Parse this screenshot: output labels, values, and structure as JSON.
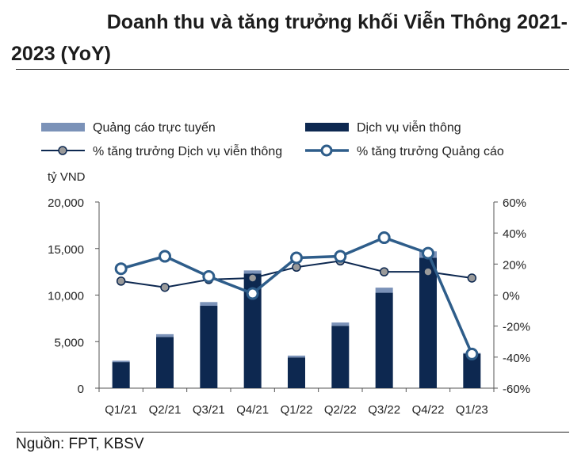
{
  "title_line1": "Doanh thu và tăng trưởng khối Viễn Thông 2021-",
  "title_line2": "2023 (YoY)",
  "source": "Nguồn: FPT, KBSV",
  "chart_data": {
    "type": "bar",
    "stacked": true,
    "categories": [
      "Q1/21",
      "Q2/21",
      "Q3/21",
      "Q4/21",
      "Q1/22",
      "Q2/22",
      "Q3/22",
      "Q4/22",
      "Q1/23"
    ],
    "y_unit_label": "tỷ VND",
    "ylim": [
      0,
      20000
    ],
    "y_ticks": [
      "0",
      "5,000",
      "10,000",
      "15,000",
      "20,000"
    ],
    "y2lim": [
      -60,
      60
    ],
    "y2_ticks": [
      "-60%",
      "-40%",
      "-20%",
      "0%",
      "20%",
      "40%",
      "60%"
    ],
    "legend_position": "top",
    "series": [
      {
        "name": "Dịch vụ viễn thông",
        "kind": "bar",
        "color": "#0d2850",
        "values": [
          2800,
          5500,
          8850,
          12300,
          3300,
          6700,
          10250,
          14000,
          3700
        ]
      },
      {
        "name": "Quảng cáo trực tuyến",
        "kind": "bar",
        "color": "#7b92b8",
        "values": [
          150,
          300,
          400,
          350,
          200,
          350,
          550,
          700,
          80
        ]
      },
      {
        "name": "% tăng trưởng Dịch vụ viễn thông",
        "kind": "line",
        "axis": "right",
        "color": "#0d2850",
        "values": [
          9,
          5,
          10,
          11,
          18,
          22,
          15,
          15,
          11
        ]
      },
      {
        "name": "% tăng trưởng Quảng cáo",
        "kind": "line",
        "axis": "right",
        "color": "#2e5d8a",
        "values": [
          17,
          25,
          12,
          1,
          24,
          25,
          37,
          27,
          -38
        ]
      }
    ]
  }
}
